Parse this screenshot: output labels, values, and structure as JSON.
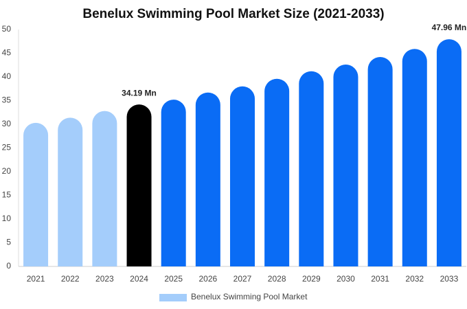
{
  "chart_data": {
    "type": "bar",
    "title": "Benelux Swimming Pool Market Size (2021-2033)",
    "categories": [
      "2021",
      "2022",
      "2023",
      "2024",
      "2025",
      "2026",
      "2027",
      "2028",
      "2029",
      "2030",
      "2031",
      "2032",
      "2033"
    ],
    "series": [
      {
        "name": "Benelux Swimming Pool Market",
        "color": "#a4cdfb",
        "values": [
          30.3,
          31.4,
          32.8,
          34.19,
          35.2,
          36.7,
          38.0,
          39.6,
          41.2,
          42.6,
          44.2,
          45.9,
          47.96
        ],
        "value_labels": [
          null,
          null,
          null,
          "34.19 Mn",
          null,
          null,
          null,
          null,
          null,
          null,
          null,
          null,
          "47.96 Mn"
        ],
        "bar_colors": [
          "#a4cdfb",
          "#a4cdfb",
          "#a4cdfb",
          "#000000",
          "#0a6cf5",
          "#0a6cf5",
          "#0a6cf5",
          "#0a6cf5",
          "#0a6cf5",
          "#0a6cf5",
          "#0a6cf5",
          "#0a6cf5",
          "#0a6cf5"
        ]
      }
    ],
    "ylim": [
      0,
      50
    ],
    "yticks": [
      0,
      5,
      10,
      15,
      20,
      25,
      30,
      35,
      40,
      45,
      50
    ],
    "grid": false
  }
}
